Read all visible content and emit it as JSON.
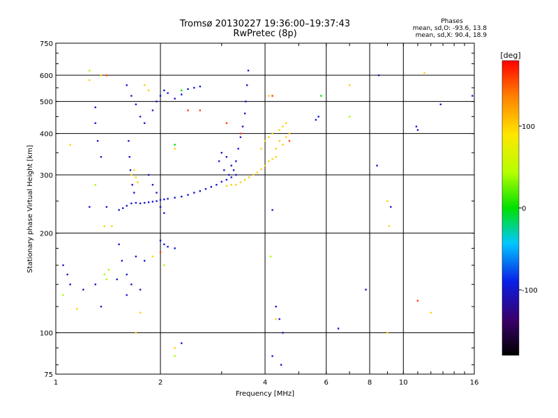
{
  "chart_data": {
    "type": "scatter",
    "title": "Tromsø 20130227 19:36:00–19:37:43",
    "subtitle": "RwPretec (8p)",
    "xlabel": "Frequency [MHz]",
    "ylabel": "Stationary phase Virtual Height [km]",
    "x_scale": "log",
    "y_scale": "log",
    "xlim": [
      1,
      16
    ],
    "ylim": [
      75,
      750
    ],
    "x_ticks": [
      1,
      2,
      4,
      6,
      8,
      10,
      16
    ],
    "y_ticks": [
      75,
      100,
      200,
      300,
      400,
      500,
      600,
      750
    ],
    "grid": true,
    "stats": {
      "title": "Phases",
      "line_o": "mean, sd,O:  -93.6,  13.8",
      "line_x": "mean, sd,X:   90.4,  18.9"
    },
    "colorbar": {
      "label": "[deg]",
      "range": [
        -180,
        180
      ],
      "ticks": [
        100,
        0,
        -100
      ]
    },
    "series": [
      {
        "points": [
          [
            1.52,
            235,
            -100
          ],
          [
            1.56,
            238,
            -100
          ],
          [
            1.6,
            242,
            -100
          ],
          [
            1.65,
            246,
            -100
          ],
          [
            1.7,
            247,
            -100
          ],
          [
            1.75,
            246,
            -100
          ],
          [
            1.8,
            247,
            -100
          ],
          [
            1.85,
            248,
            -100
          ],
          [
            1.9,
            249,
            -100
          ],
          [
            1.95,
            250,
            -100
          ],
          [
            2.0,
            252,
            -100
          ],
          [
            2.05,
            253,
            -100
          ],
          [
            2.1,
            254,
            -100
          ],
          [
            2.2,
            256,
            -100
          ],
          [
            2.3,
            258,
            -100
          ],
          [
            2.4,
            261,
            -100
          ],
          [
            2.5,
            265,
            -100
          ],
          [
            2.6,
            268,
            -100
          ],
          [
            2.7,
            272,
            -100
          ],
          [
            2.8,
            276,
            -100
          ],
          [
            2.9,
            280,
            -100
          ],
          [
            3.0,
            286,
            -100
          ],
          [
            3.1,
            290,
            -100
          ],
          [
            3.2,
            295,
            -100
          ],
          [
            3.3,
            300,
            -100
          ],
          [
            1.6,
            560,
            -100
          ],
          [
            1.65,
            520,
            -100
          ],
          [
            1.7,
            490,
            -100
          ],
          [
            1.75,
            450,
            -100
          ],
          [
            1.8,
            430,
            -100
          ],
          [
            1.9,
            470,
            -100
          ],
          [
            1.95,
            500,
            -100
          ],
          [
            2.0,
            520,
            -100
          ],
          [
            2.05,
            540,
            -100
          ],
          [
            2.1,
            530,
            -100
          ],
          [
            2.2,
            510,
            -100
          ],
          [
            2.3,
            525,
            -100
          ],
          [
            2.4,
            545,
            -100
          ],
          [
            2.5,
            550,
            -100
          ],
          [
            2.6,
            555,
            -100
          ],
          [
            1.62,
            380,
            -100
          ],
          [
            1.63,
            340,
            -100
          ],
          [
            1.64,
            310,
            -100
          ],
          [
            1.66,
            280,
            -100
          ],
          [
            1.68,
            265,
            -100
          ],
          [
            1.85,
            300,
            -100
          ],
          [
            1.9,
            280,
            -100
          ],
          [
            1.95,
            265,
            -100
          ],
          [
            2.0,
            240,
            -100
          ],
          [
            2.05,
            230,
            -100
          ],
          [
            3.3,
            330,
            -100
          ],
          [
            3.35,
            360,
            -100
          ],
          [
            3.4,
            390,
            -100
          ],
          [
            3.45,
            420,
            -100
          ],
          [
            3.5,
            460,
            -100
          ],
          [
            3.52,
            500,
            -100
          ],
          [
            3.55,
            560,
            -100
          ],
          [
            3.58,
            620,
            -100
          ],
          [
            3.2,
            320,
            -100
          ],
          [
            3.1,
            340,
            -100
          ],
          [
            3.0,
            350,
            -100
          ],
          [
            2.95,
            330,
            -100
          ],
          [
            3.05,
            310,
            -100
          ],
          [
            3.15,
            300,
            -100
          ],
          [
            3.25,
            310,
            -100
          ],
          [
            2.0,
            190,
            -100
          ],
          [
            2.05,
            185,
            -100
          ],
          [
            2.1,
            182,
            -100
          ],
          [
            2.2,
            180,
            -100
          ],
          [
            1.3,
            430,
            -100
          ],
          [
            1.32,
            380,
            -100
          ],
          [
            1.35,
            340,
            -100
          ],
          [
            1.3,
            480,
            -100
          ],
          [
            1.25,
            240,
            -100
          ],
          [
            1.4,
            240,
            -100
          ],
          [
            1.05,
            160,
            -100
          ],
          [
            1.08,
            150,
            -100
          ],
          [
            1.1,
            140,
            -100
          ],
          [
            1.2,
            135,
            -100
          ],
          [
            1.3,
            140,
            -100
          ],
          [
            1.5,
            145,
            -100
          ],
          [
            1.6,
            150,
            -100
          ],
          [
            1.65,
            140,
            -100
          ],
          [
            1.7,
            170,
            -100
          ],
          [
            1.8,
            165,
            -100
          ],
          [
            1.55,
            165,
            -100
          ],
          [
            1.35,
            120,
            -100
          ],
          [
            4.2,
            235,
            -100
          ],
          [
            4.3,
            120,
            -100
          ],
          [
            4.4,
            110,
            -100
          ],
          [
            4.5,
            100,
            -100
          ],
          [
            4.2,
            85,
            -100
          ],
          [
            4.45,
            80,
            -100
          ],
          [
            5.7,
            450,
            -100
          ],
          [
            5.6,
            440,
            -100
          ],
          [
            6.5,
            103,
            -100
          ],
          [
            8.5,
            600,
            -100
          ],
          [
            8.4,
            320,
            -100
          ],
          [
            7.8,
            135,
            -100
          ],
          [
            9.2,
            240,
            -100
          ],
          [
            10.9,
            420,
            -100
          ],
          [
            11.0,
            410,
            -100
          ],
          [
            12.8,
            490,
            -100
          ],
          [
            15.8,
            520,
            -100
          ],
          [
            2.3,
            93,
            -100
          ],
          [
            1.52,
            185,
            -100
          ],
          [
            1.6,
            130,
            -100
          ],
          [
            1.75,
            135,
            -100
          ],
          [
            3.3,
            280,
            100
          ],
          [
            3.4,
            285,
            100
          ],
          [
            3.5,
            290,
            100
          ],
          [
            3.6,
            295,
            100
          ],
          [
            3.7,
            300,
            100
          ],
          [
            3.8,
            305,
            100
          ],
          [
            3.9,
            312,
            100
          ],
          [
            4.0,
            320,
            100
          ],
          [
            4.1,
            330,
            100
          ],
          [
            4.2,
            335,
            100
          ],
          [
            4.3,
            340,
            100
          ],
          [
            3.9,
            360,
            100
          ],
          [
            4.0,
            380,
            100
          ],
          [
            4.1,
            390,
            100
          ],
          [
            4.2,
            400,
            100
          ],
          [
            4.4,
            410,
            100
          ],
          [
            4.5,
            420,
            100
          ],
          [
            4.6,
            430,
            100
          ],
          [
            4.4,
            380,
            100
          ],
          [
            4.3,
            360,
            100
          ],
          [
            4.5,
            370,
            100
          ],
          [
            4.6,
            390,
            100
          ],
          [
            4.7,
            400,
            100
          ],
          [
            3.2,
            280,
            100
          ],
          [
            3.1,
            278,
            100
          ],
          [
            1.65,
            300,
            100
          ],
          [
            1.7,
            295,
            100
          ],
          [
            1.72,
            285,
            100
          ],
          [
            1.68,
            310,
            100
          ],
          [
            1.8,
            560,
            100
          ],
          [
            1.85,
            540,
            100
          ],
          [
            2.2,
            360,
            100
          ],
          [
            4.1,
            520,
            100
          ],
          [
            7.0,
            560,
            100
          ],
          [
            1.25,
            580,
            100
          ],
          [
            1.35,
            600,
            100
          ],
          [
            11.5,
            610,
            100
          ],
          [
            1.1,
            370,
            100
          ],
          [
            1.38,
            210,
            100
          ],
          [
            1.45,
            210,
            100
          ],
          [
            9.0,
            250,
            100
          ],
          [
            9.1,
            210,
            100
          ],
          [
            9.0,
            100,
            100
          ],
          [
            12.0,
            115,
            100
          ],
          [
            2.2,
            90,
            100
          ],
          [
            4.3,
            110,
            100
          ],
          [
            1.7,
            100,
            100
          ],
          [
            1.75,
            115,
            100
          ],
          [
            1.9,
            170,
            100
          ],
          [
            1.15,
            118,
            100
          ],
          [
            1.25,
            620,
            40
          ],
          [
            1.38,
            150,
            40
          ],
          [
            1.42,
            155,
            40
          ],
          [
            1.4,
            145,
            40
          ],
          [
            1.3,
            280,
            40
          ],
          [
            7.0,
            450,
            40
          ],
          [
            4.15,
            170,
            40
          ],
          [
            2.05,
            160,
            40
          ],
          [
            2.2,
            85,
            40
          ],
          [
            1.05,
            130,
            40
          ],
          [
            2.2,
            370,
            0
          ],
          [
            5.8,
            520,
            0
          ],
          [
            2.3,
            540,
            0
          ],
          [
            2.4,
            470,
            160
          ],
          [
            3.4,
            400,
            160
          ],
          [
            4.2,
            520,
            160
          ],
          [
            4.7,
            380,
            160
          ],
          [
            2.0,
            175,
            160
          ],
          [
            11.0,
            125,
            160
          ],
          [
            1.4,
            600,
            160
          ],
          [
            2.6,
            470,
            160
          ],
          [
            3.1,
            430,
            160
          ]
        ]
      }
    ]
  }
}
